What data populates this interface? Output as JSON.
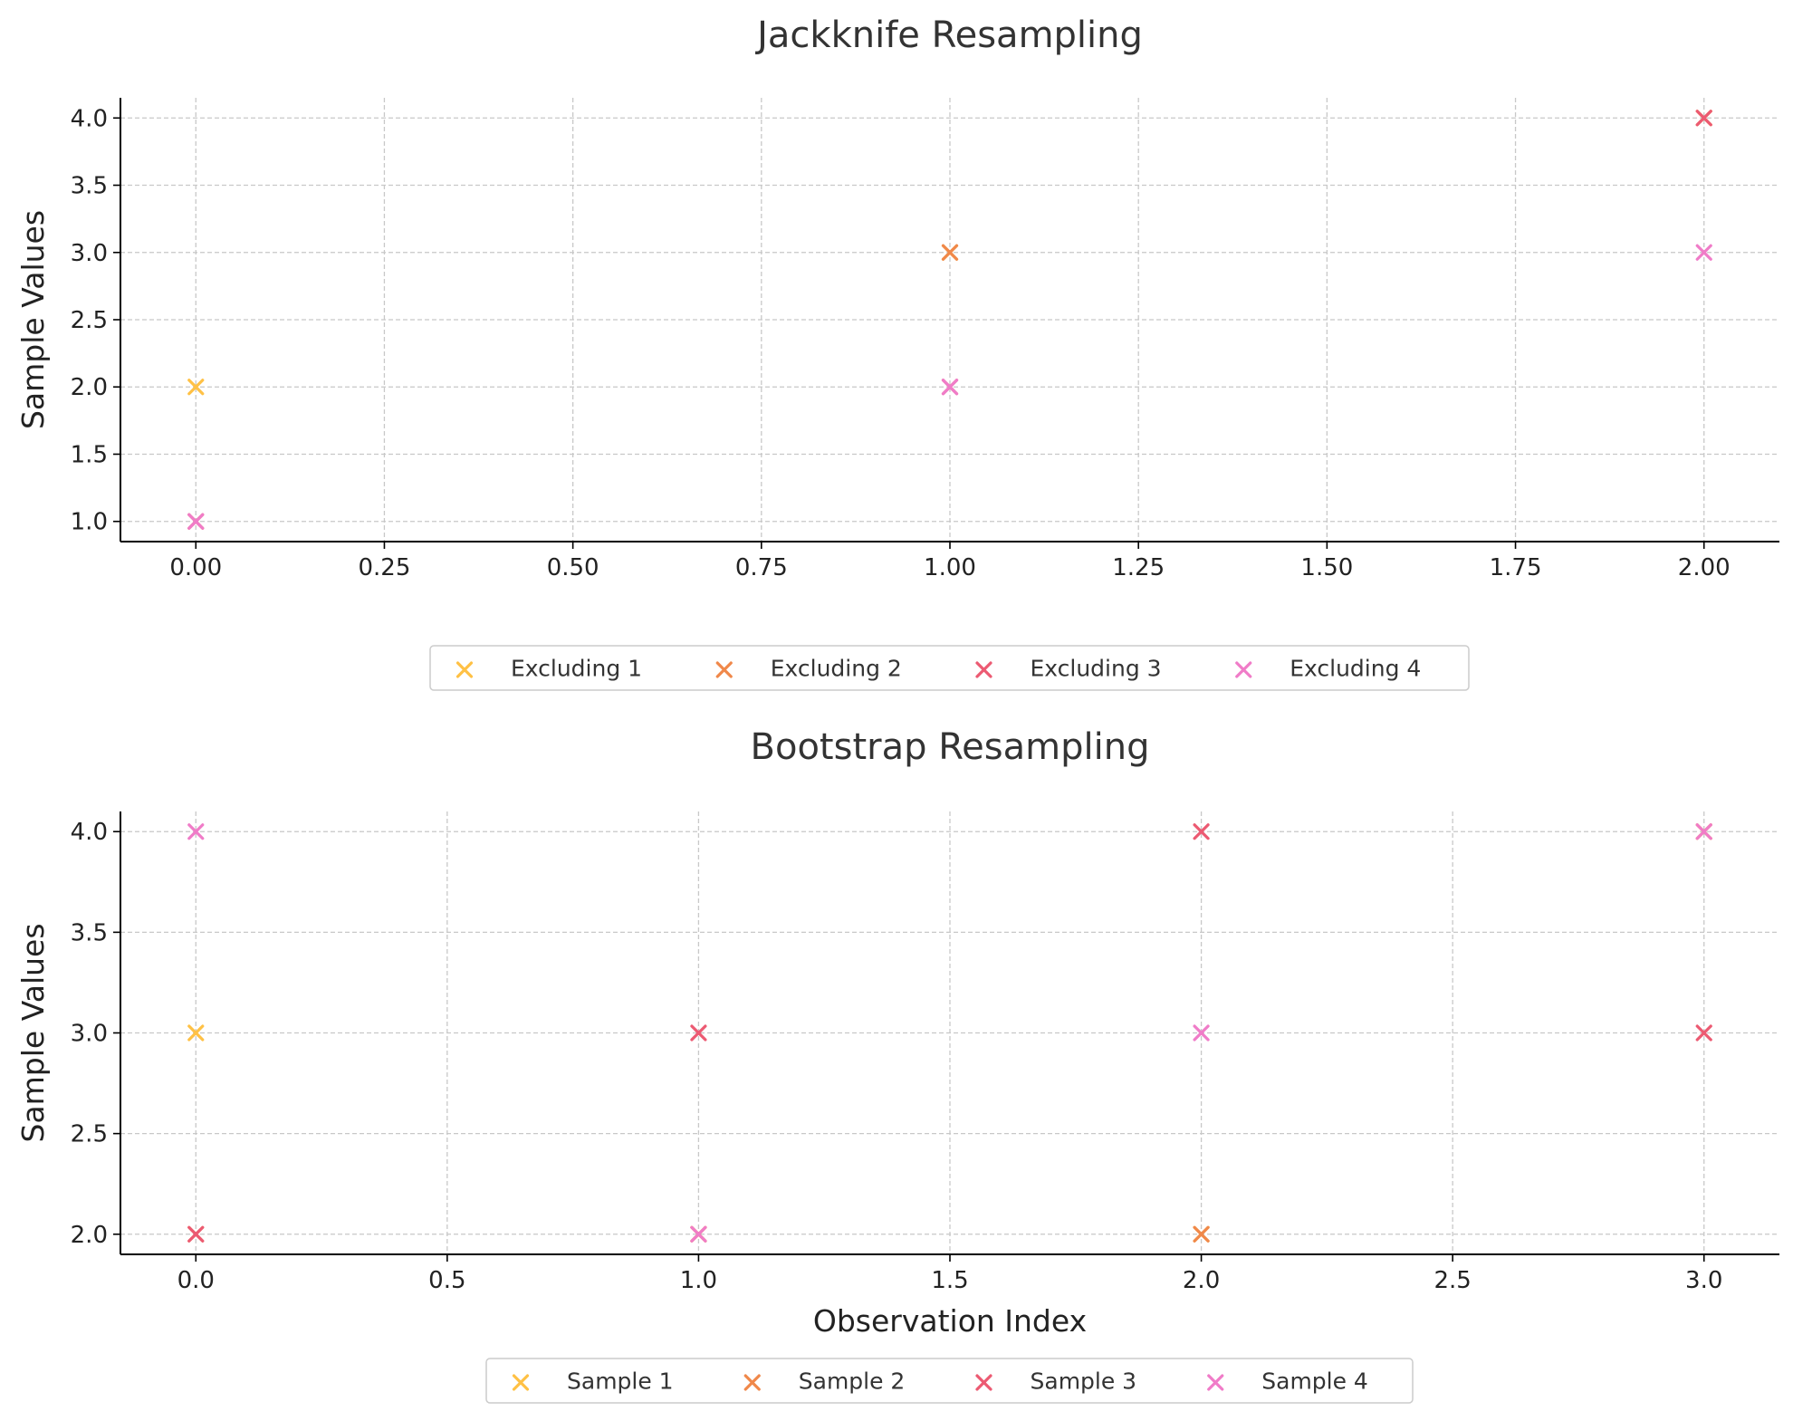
{
  "chart_data": [
    {
      "type": "scatter",
      "title": "Jackknife Resampling",
      "xlabel": "",
      "ylabel": "Sample Values",
      "xlim": [
        -0.1,
        2.1
      ],
      "ylim": [
        0.85,
        4.15
      ],
      "xticks": [
        0.0,
        0.25,
        0.5,
        0.75,
        1.0,
        1.25,
        1.5,
        1.75,
        2.0
      ],
      "xtick_labels": [
        "0.00",
        "0.25",
        "0.50",
        "0.75",
        "1.00",
        "1.25",
        "1.50",
        "1.75",
        "2.00"
      ],
      "yticks": [
        1.0,
        1.5,
        2.0,
        2.5,
        3.0,
        3.5,
        4.0
      ],
      "ytick_labels": [
        "1.0",
        "1.5",
        "2.0",
        "2.5",
        "3.0",
        "3.5",
        "4.0"
      ],
      "grid": true,
      "marker": "x",
      "legend_position": "below",
      "series": [
        {
          "name": "Excluding 1",
          "color": "#FFC145",
          "x": [
            0,
            1,
            2
          ],
          "y": [
            2,
            3,
            4
          ]
        },
        {
          "name": "Excluding 2",
          "color": "#F0884A",
          "x": [
            0,
            1,
            2
          ],
          "y": [
            1,
            3,
            4
          ]
        },
        {
          "name": "Excluding 3",
          "color": "#EC5A72",
          "x": [
            0,
            1,
            2
          ],
          "y": [
            1,
            2,
            4
          ]
        },
        {
          "name": "Excluding 4",
          "color": "#F07CC8",
          "x": [
            0,
            1,
            2
          ],
          "y": [
            1,
            2,
            3
          ]
        }
      ]
    },
    {
      "type": "scatter",
      "title": "Bootstrap Resampling",
      "xlabel": "Observation Index",
      "ylabel": "Sample Values",
      "xlim": [
        -0.15,
        3.15
      ],
      "ylim": [
        1.9,
        4.1
      ],
      "xticks": [
        0.0,
        0.5,
        1.0,
        1.5,
        2.0,
        2.5,
        3.0
      ],
      "xtick_labels": [
        "0.0",
        "0.5",
        "1.0",
        "1.5",
        "2.0",
        "2.5",
        "3.0"
      ],
      "yticks": [
        2.0,
        2.5,
        3.0,
        3.5,
        4.0
      ],
      "ytick_labels": [
        "2.0",
        "2.5",
        "3.0",
        "3.5",
        "4.0"
      ],
      "grid": true,
      "marker": "x",
      "legend_position": "below",
      "series": [
        {
          "name": "Sample 1",
          "color": "#FFC145",
          "x": [
            0,
            1,
            2,
            3
          ],
          "y": [
            3,
            2,
            2,
            4
          ]
        },
        {
          "name": "Sample 2",
          "color": "#F0884A",
          "x": [
            0,
            1,
            2,
            3
          ],
          "y": [
            2,
            2,
            2,
            4
          ]
        },
        {
          "name": "Sample 3",
          "color": "#EC5A72",
          "x": [
            0,
            1,
            2,
            3
          ],
          "y": [
            2,
            3,
            4,
            3
          ]
        },
        {
          "name": "Sample 4",
          "color": "#F07CC8",
          "x": [
            0,
            1,
            2,
            3
          ],
          "y": [
            4,
            2,
            3,
            4
          ]
        }
      ]
    }
  ]
}
